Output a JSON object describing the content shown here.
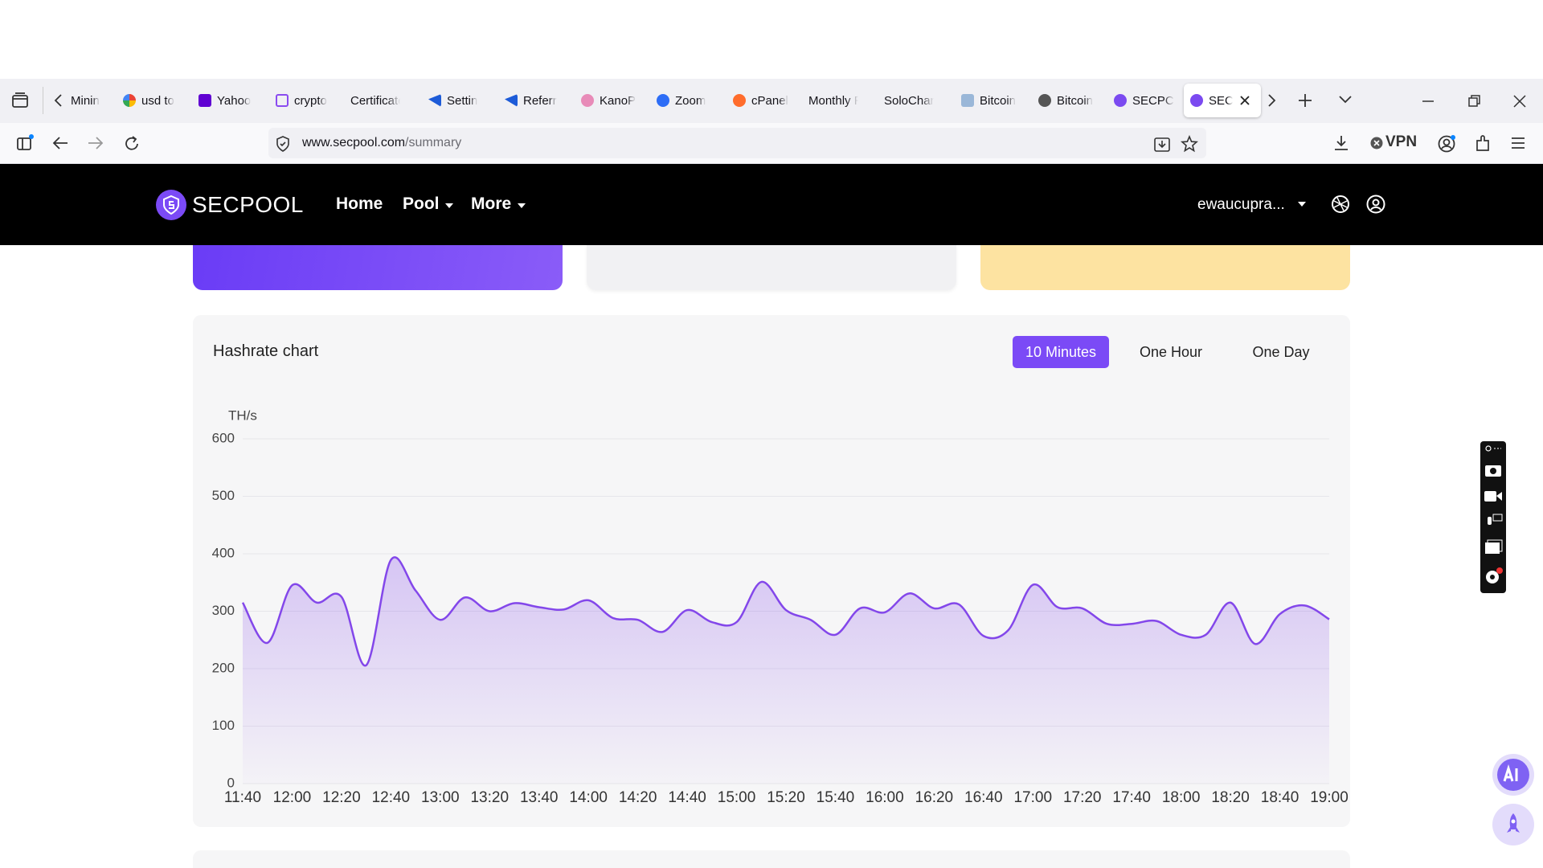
{
  "browser": {
    "tabs": [
      "Minin",
      "usd to",
      "Yahoo",
      "crypto",
      "Certificate",
      "Settin",
      "Referr",
      "KanoP",
      "Zoom",
      "cPanel",
      "Monthly R",
      "SoloChanc",
      "Bitcoin",
      "Bitcoin",
      "SECPC",
      "SEC"
    ],
    "url_host": "www.secpool.com",
    "url_path": "/summary",
    "vpn": "VPN"
  },
  "nav": {
    "brand": "SECPOOL",
    "links": [
      "Home",
      "Pool",
      "More"
    ],
    "user": "ewaucupra..."
  },
  "panel": {
    "title": "Hashrate chart",
    "buttons": [
      "10 Minutes",
      "One Hour",
      "One Day"
    ],
    "active_button": 0
  },
  "chart_data": {
    "type": "area",
    "y_label": "TH/s",
    "categories": [
      "11:40",
      null,
      "12:00",
      null,
      "12:20",
      null,
      "12:40",
      null,
      "13:00",
      null,
      "13:20",
      null,
      "13:40",
      null,
      "14:00",
      null,
      "14:20",
      null,
      "14:40",
      null,
      "15:00",
      null,
      "15:20",
      null,
      "15:40",
      null,
      "16:00",
      null,
      "16:20",
      null,
      "16:40",
      null,
      "17:00",
      null,
      "17:20",
      null,
      "17:40",
      null,
      "18:00",
      null,
      "18:20",
      null,
      "18:40",
      null,
      "19:00"
    ],
    "values": [
      315,
      245,
      345,
      315,
      325,
      206,
      389,
      336,
      285,
      324,
      300,
      314,
      307,
      303,
      319,
      288,
      285,
      264,
      302,
      281,
      281,
      351,
      302,
      285,
      259,
      305,
      298,
      331,
      305,
      312,
      257,
      267,
      346,
      307,
      305,
      278,
      278,
      283,
      259,
      259,
      315,
      243,
      295,
      310,
      286
    ],
    "color": "#8347ea",
    "ylim": [
      0,
      600
    ],
    "yticks": [
      0,
      100,
      200,
      300,
      400,
      500,
      600
    ],
    "grid": true
  }
}
